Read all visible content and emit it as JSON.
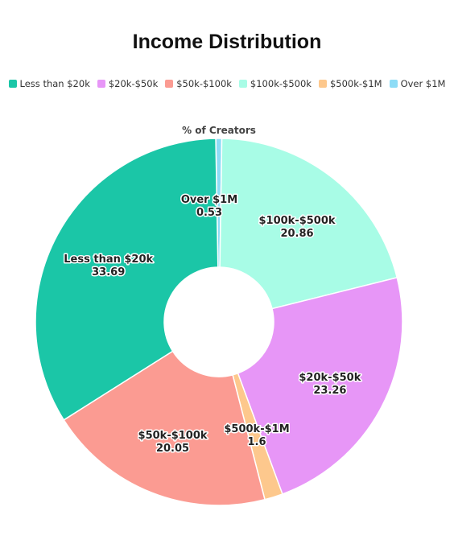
{
  "chart_data": {
    "type": "pie",
    "title": "Income Distribution",
    "subtitle": "% of Creators",
    "legend_position": "top",
    "donut": true,
    "categories": [
      "Less than $20k",
      "$20k-$50k",
      "$50k-$100k",
      "$100k-$500k",
      "$500k-$1M",
      "Over $1M"
    ],
    "colors": [
      "#1bc6a7",
      "#e796f7",
      "#fb9b92",
      "#a8fce6",
      "#fdc88d",
      "#8ddcf6"
    ],
    "slices": [
      {
        "label": "Over $1M",
        "value": 0.53,
        "value_text": "0.53",
        "color": "#8ddcf6"
      },
      {
        "label": "$100k-$500k",
        "value": 20.86,
        "value_text": "20.86",
        "color": "#a8fce6"
      },
      {
        "label": "$20k-$50k",
        "value": 23.26,
        "value_text": "23.26",
        "color": "#e796f7"
      },
      {
        "label": "$500k-$1M",
        "value": 1.6,
        "value_text": "1.6",
        "color": "#fdc88d"
      },
      {
        "label": "$50k-$100k",
        "value": 20.05,
        "value_text": "20.05",
        "color": "#fb9b92"
      },
      {
        "label": "Less than $20k",
        "value": 33.69,
        "value_text": "33.69",
        "color": "#1bc6a7"
      }
    ]
  }
}
